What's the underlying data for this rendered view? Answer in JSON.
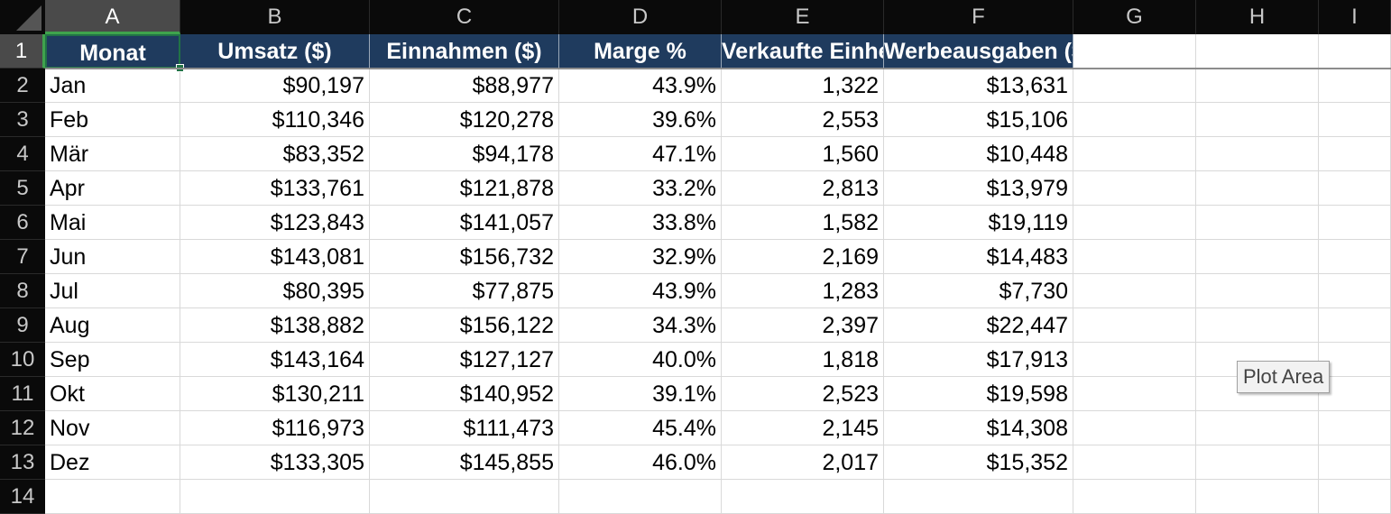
{
  "columns": [
    "A",
    "B",
    "C",
    "D",
    "E",
    "F",
    "G",
    "H",
    "I"
  ],
  "rows": [
    "1",
    "2",
    "3",
    "4",
    "5",
    "6",
    "7",
    "8",
    "9",
    "10",
    "11",
    "12",
    "13",
    "14"
  ],
  "headers": [
    "Monat",
    "Umsatz ($)",
    "Einnahmen ($)",
    "Marge %",
    "Verkaufte Einheiten",
    "Werbeausgaben ($)"
  ],
  "data": [
    [
      "Jan",
      "$90,197",
      "$88,977",
      "43.9%",
      "1,322",
      "$13,631"
    ],
    [
      "Feb",
      "$110,346",
      "$120,278",
      "39.6%",
      "2,553",
      "$15,106"
    ],
    [
      "Mär",
      "$83,352",
      "$94,178",
      "47.1%",
      "1,560",
      "$10,448"
    ],
    [
      "Apr",
      "$133,761",
      "$121,878",
      "33.2%",
      "2,813",
      "$13,979"
    ],
    [
      "Mai",
      "$123,843",
      "$141,057",
      "33.8%",
      "1,582",
      "$19,119"
    ],
    [
      "Jun",
      "$143,081",
      "$156,732",
      "32.9%",
      "2,169",
      "$14,483"
    ],
    [
      "Jul",
      "$80,395",
      "$77,875",
      "43.9%",
      "1,283",
      "$7,730"
    ],
    [
      "Aug",
      "$138,882",
      "$156,122",
      "34.3%",
      "2,397",
      "$22,447"
    ],
    [
      "Sep",
      "$143,164",
      "$127,127",
      "40.0%",
      "1,818",
      "$17,913"
    ],
    [
      "Okt",
      "$130,211",
      "$140,952",
      "39.1%",
      "2,523",
      "$19,598"
    ],
    [
      "Nov",
      "$116,973",
      "$111,473",
      "45.4%",
      "2,145",
      "$14,308"
    ],
    [
      "Dez",
      "$133,305",
      "$145,855",
      "46.0%",
      "2,017",
      "$15,352"
    ]
  ],
  "tooltip": "Plot Area",
  "colors": {
    "header_bg": "#1f3b5e",
    "selection": "#217346",
    "chrome": "#0a0a0a"
  }
}
